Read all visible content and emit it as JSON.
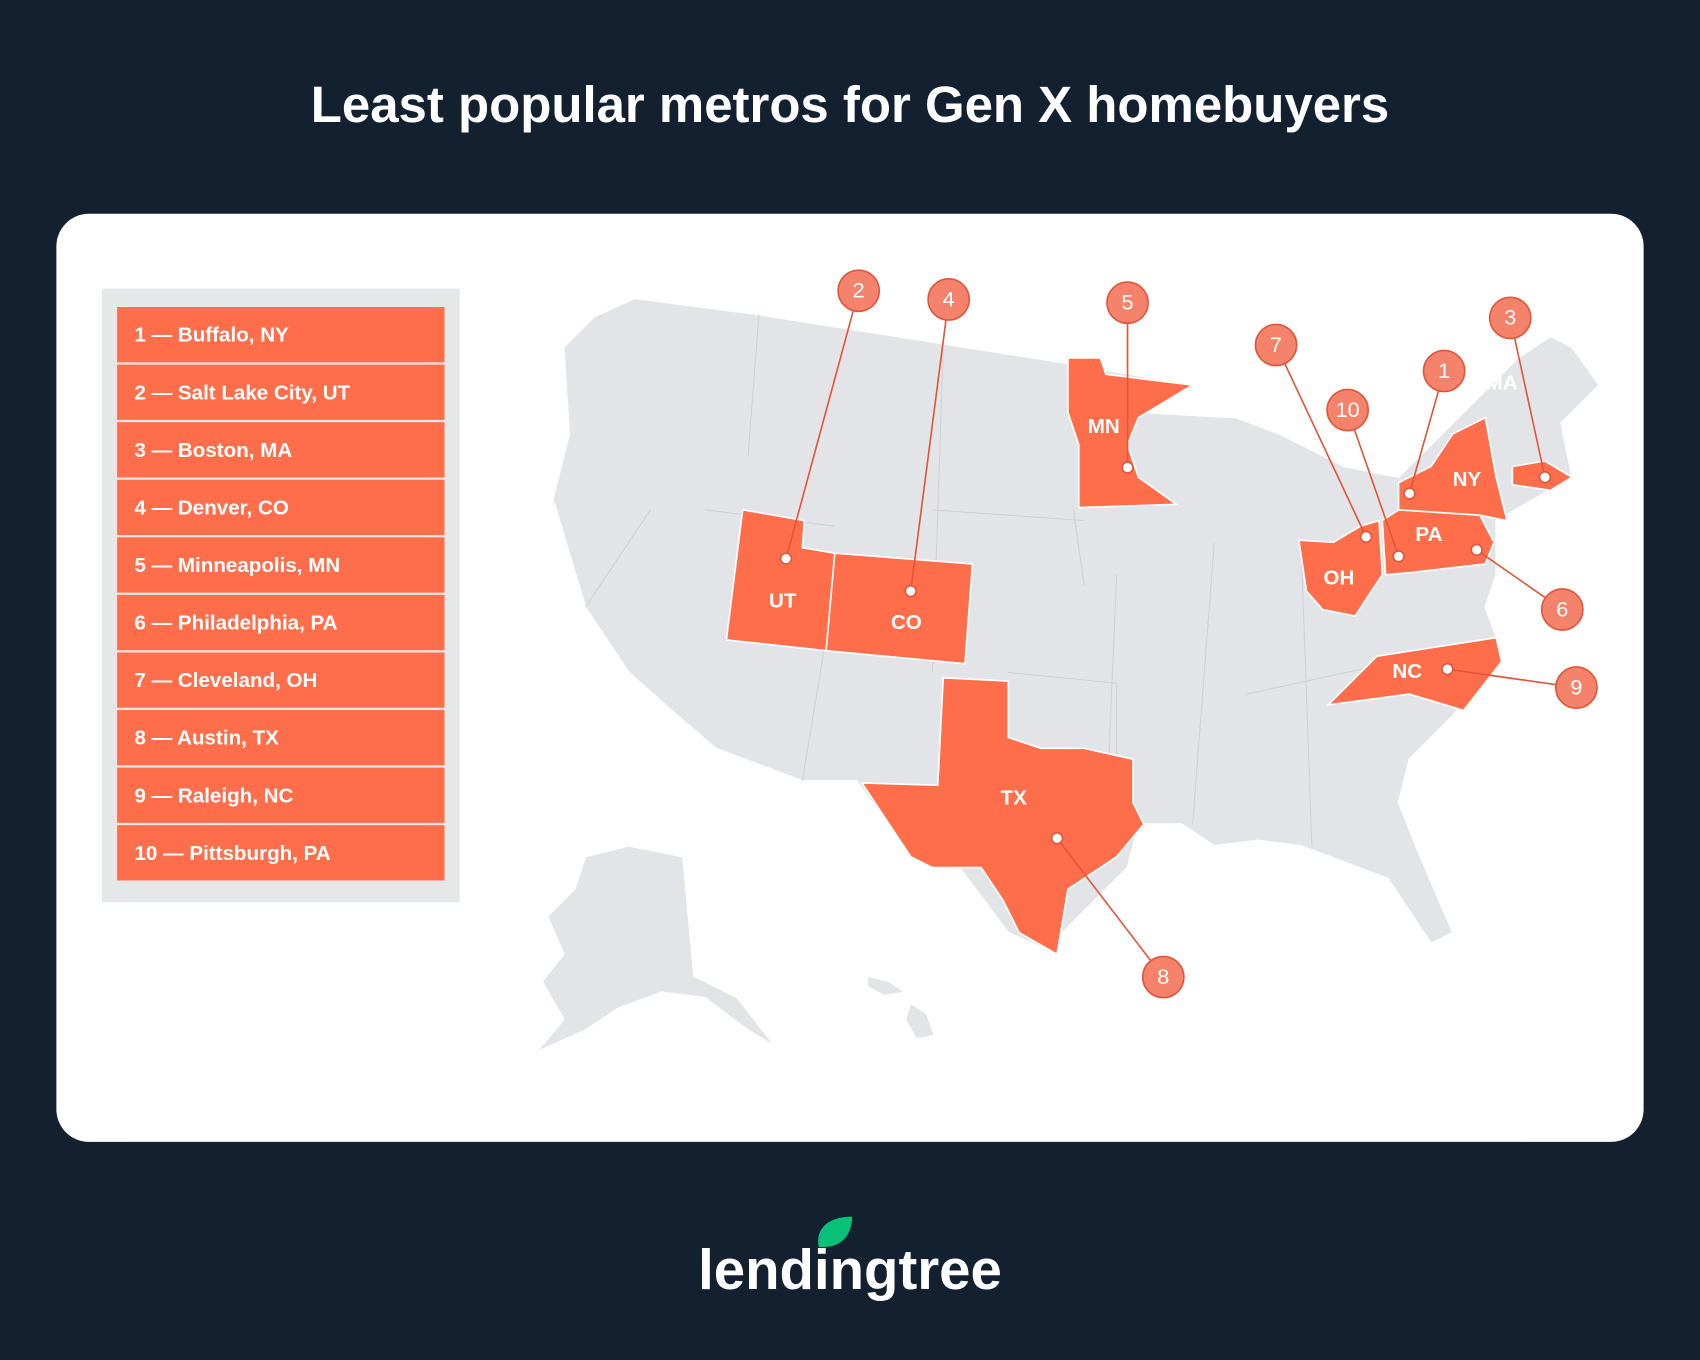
{
  "title": "Least popular metros for Gen X homebuyers",
  "rankings": [
    "1 — Buffalo, NY",
    "2 — Salt Lake City, UT",
    "3 — Boston, MA",
    "4 — Denver, CO",
    "5 — Minneapolis, MN",
    "6 — Philadelphia, PA",
    "7 — Cleveland, OH",
    "8 — Austin, TX",
    "9 — Raleigh, NC",
    "10 — Pittsburgh, PA"
  ],
  "states": [
    "UT",
    "CO",
    "MN",
    "OH",
    "PA",
    "NY",
    "MA",
    "NC",
    "TX"
  ],
  "markers": [
    1,
    2,
    3,
    4,
    5,
    6,
    7,
    8,
    9,
    10
  ],
  "logo": "lendingtree"
}
